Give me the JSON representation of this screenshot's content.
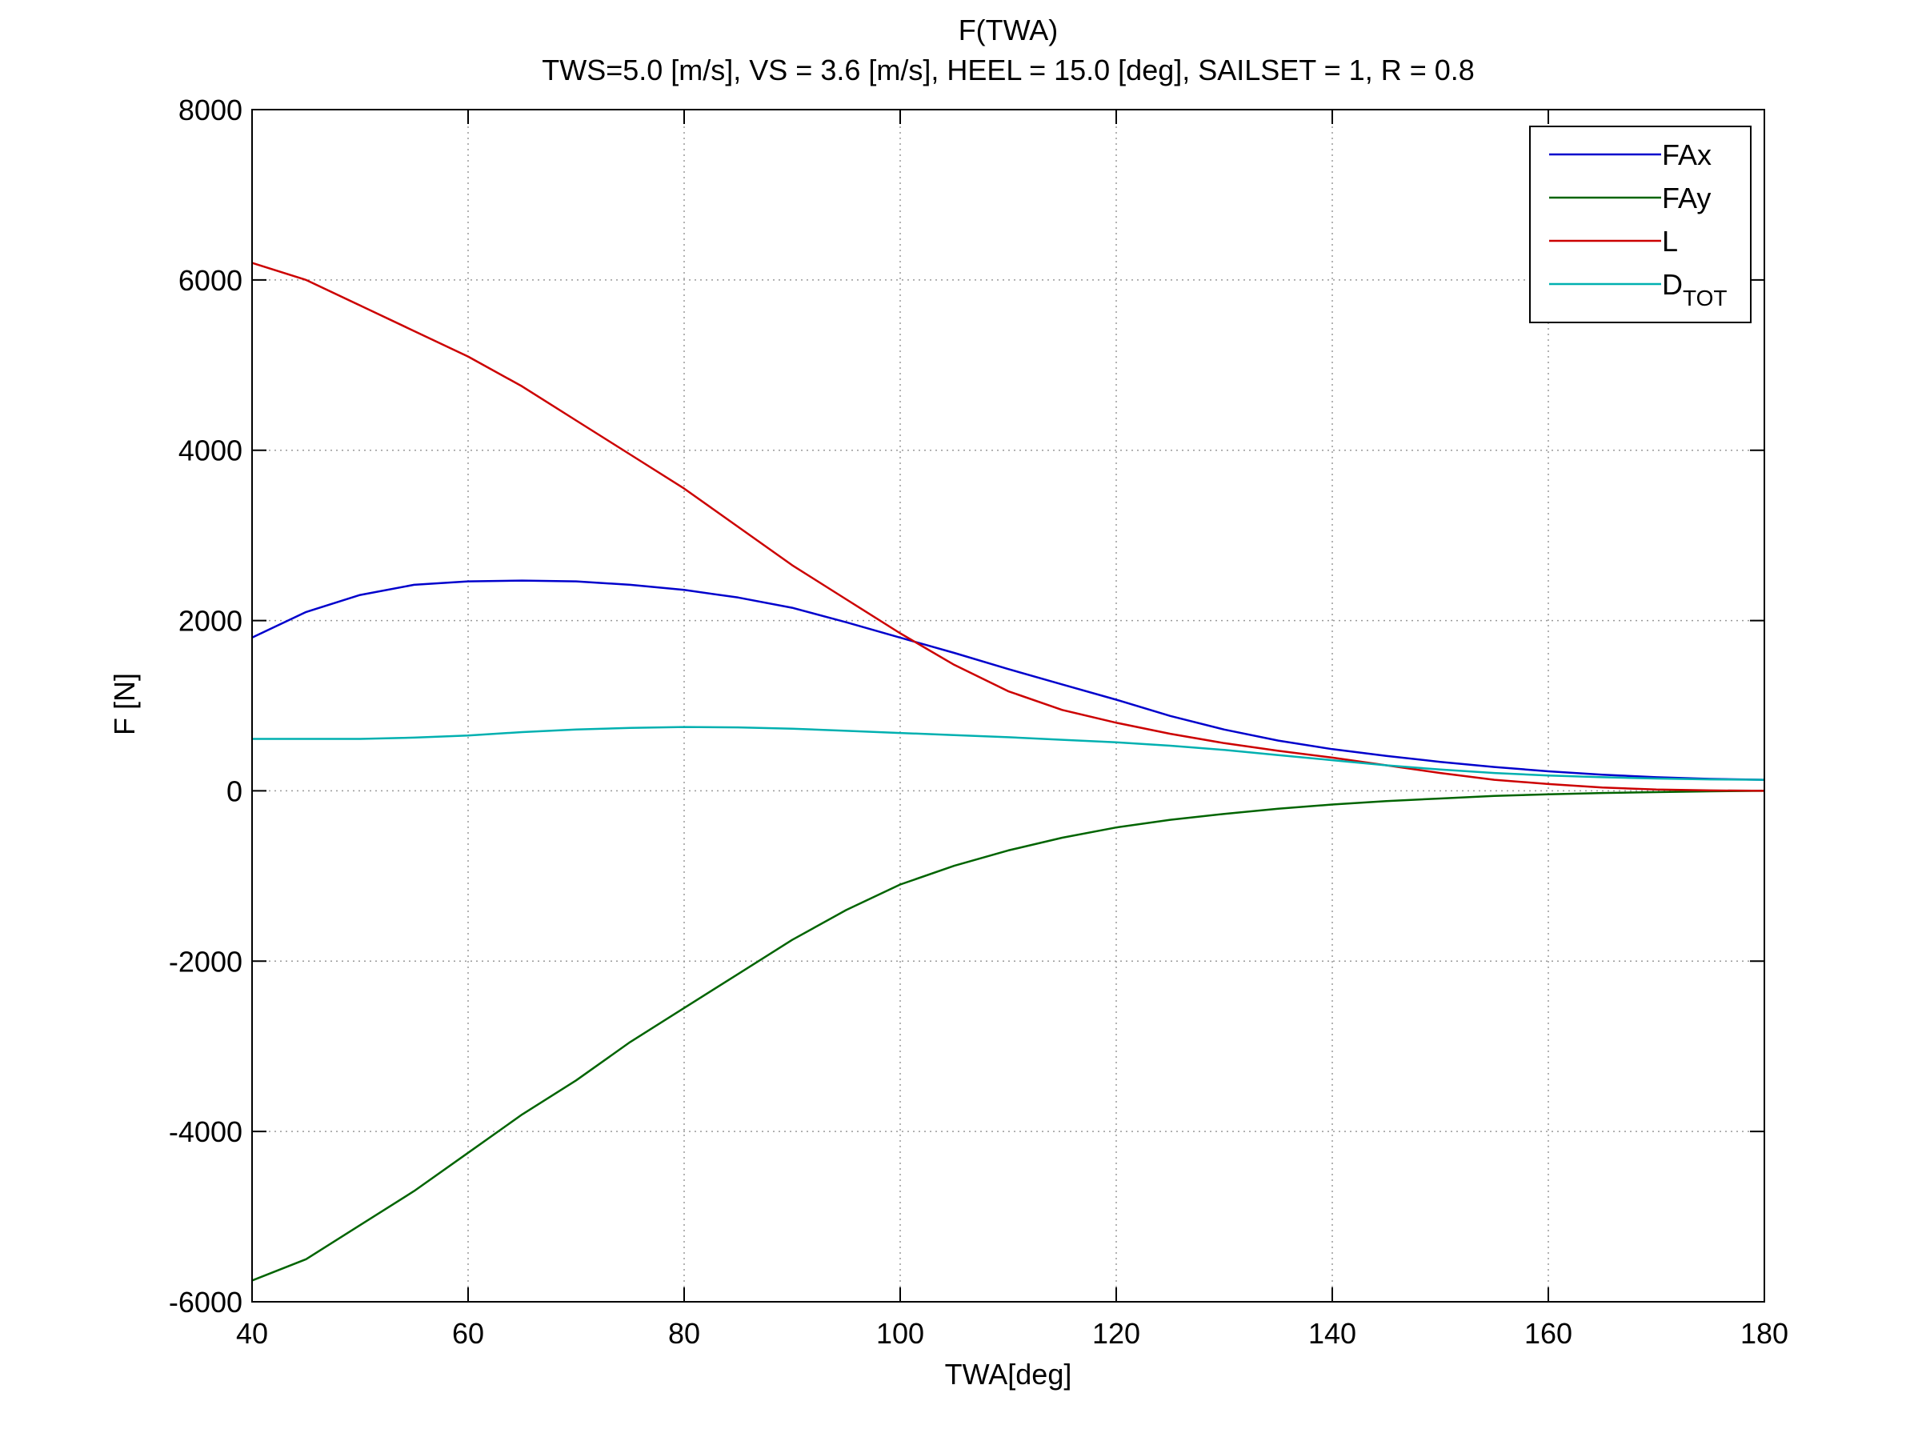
{
  "chart_data": {
    "type": "line",
    "title": "F(TWA)",
    "subtitle": "TWS=5.0 [m/s], VS = 3.6 [m/s],  HEEL = 15.0 [deg], SAILSET = 1, R = 0.8",
    "xlabel": "TWA[deg]",
    "ylabel": "F [N]",
    "xlim": [
      40,
      180
    ],
    "ylim": [
      -6000,
      8000
    ],
    "xticks": [
      40,
      60,
      80,
      100,
      120,
      140,
      160,
      180
    ],
    "yticks": [
      -6000,
      -4000,
      -2000,
      0,
      2000,
      4000,
      6000,
      8000
    ],
    "grid": true,
    "legend_position": "top-right",
    "x": [
      40,
      45,
      50,
      55,
      60,
      65,
      70,
      75,
      80,
      85,
      90,
      95,
      100,
      105,
      110,
      115,
      120,
      125,
      130,
      135,
      140,
      145,
      150,
      155,
      160,
      165,
      170,
      175,
      180
    ],
    "series": [
      {
        "name": "FAx",
        "color": "#0000cc",
        "values": [
          1800,
          2100,
          2300,
          2420,
          2460,
          2470,
          2460,
          2420,
          2360,
          2270,
          2150,
          1980,
          1800,
          1620,
          1430,
          1250,
          1070,
          880,
          720,
          590,
          490,
          410,
          340,
          280,
          230,
          190,
          160,
          140,
          130
        ]
      },
      {
        "name": "FAy",
        "color": "#006400",
        "values": [
          -5750,
          -5500,
          -5100,
          -4700,
          -4250,
          -3800,
          -3400,
          -2950,
          -2550,
          -2150,
          -1750,
          -1400,
          -1100,
          -880,
          -700,
          -550,
          -430,
          -340,
          -270,
          -210,
          -160,
          -120,
          -90,
          -60,
          -40,
          -25,
          -15,
          -5,
          0
        ]
      },
      {
        "name": "L",
        "color": "#cc0000",
        "values": [
          6200,
          6000,
          5700,
          5400,
          5100,
          4750,
          4350,
          3950,
          3550,
          3100,
          2650,
          2250,
          1850,
          1480,
          1170,
          950,
          800,
          670,
          560,
          470,
          390,
          300,
          210,
          130,
          80,
          40,
          15,
          5,
          0
        ]
      },
      {
        "name": "D_TOT",
        "color": "#00b0b0",
        "values": [
          610,
          610,
          610,
          625,
          650,
          690,
          720,
          740,
          750,
          745,
          730,
          705,
          680,
          655,
          630,
          600,
          570,
          530,
          480,
          420,
          360,
          300,
          250,
          210,
          180,
          160,
          145,
          135,
          130
        ]
      }
    ],
    "legend_labels": [
      {
        "main": "FAx",
        "sub": ""
      },
      {
        "main": "FAy",
        "sub": ""
      },
      {
        "main": "L",
        "sub": ""
      },
      {
        "main": "D",
        "sub": "TOT"
      }
    ]
  }
}
